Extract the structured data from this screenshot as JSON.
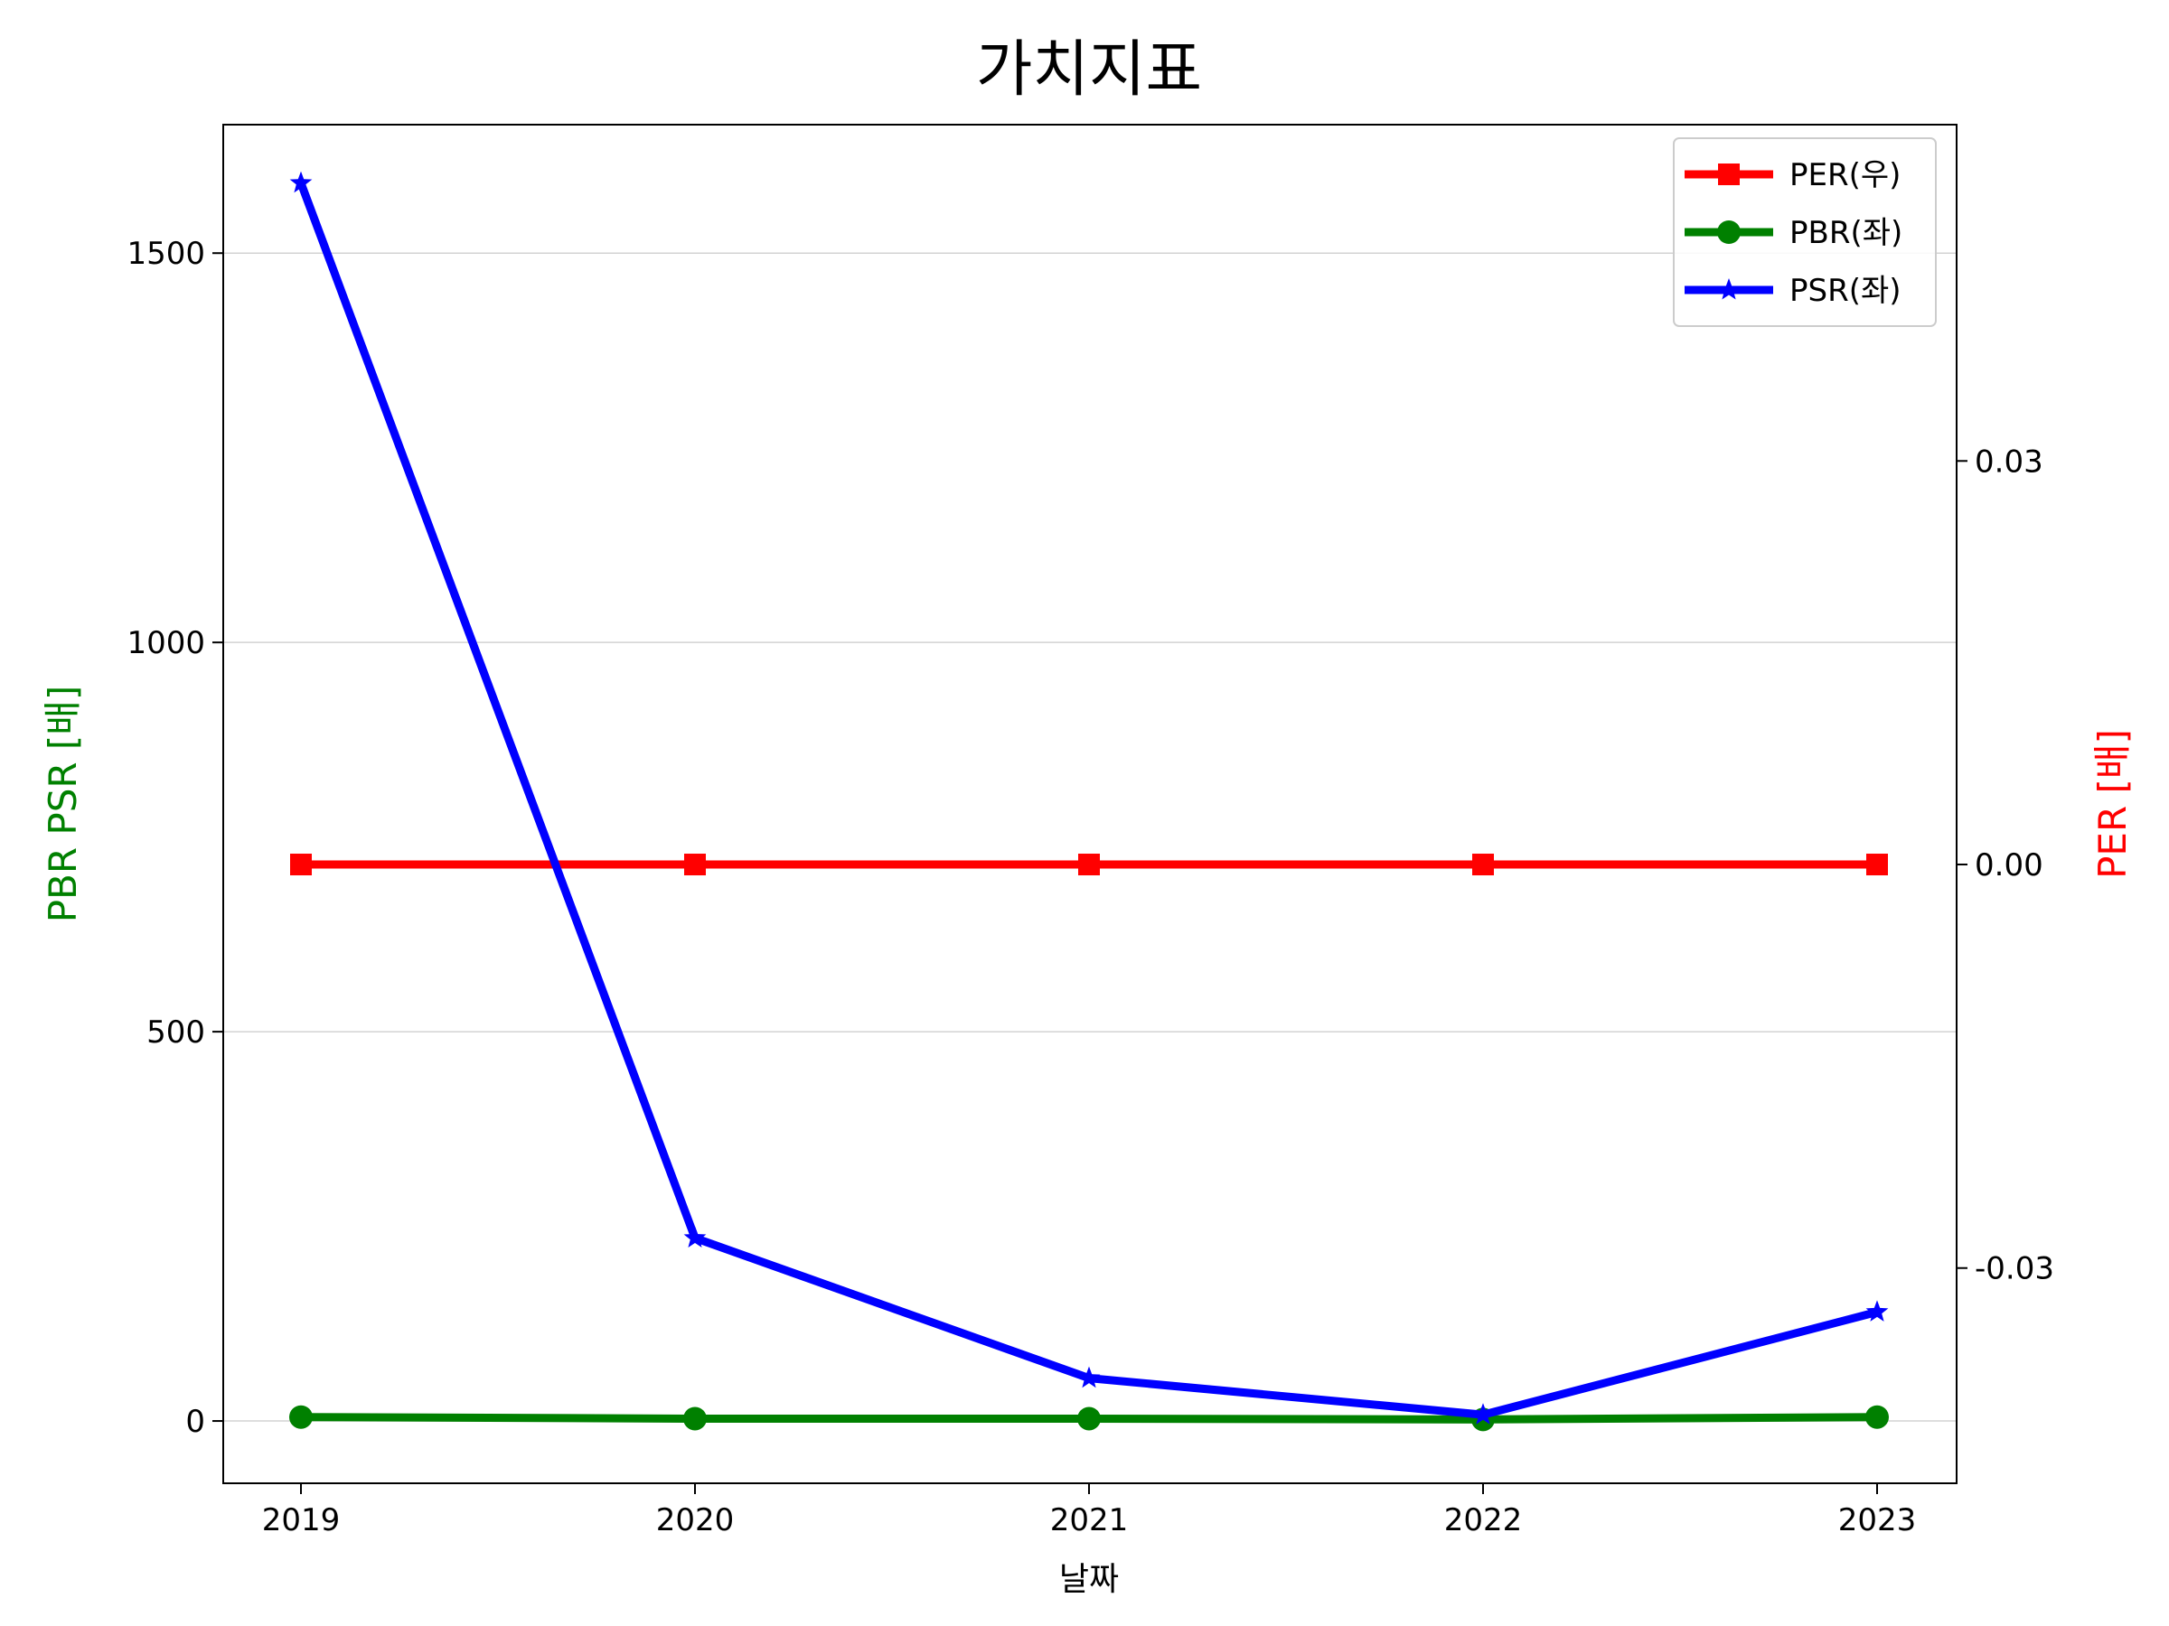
{
  "chart_data": {
    "type": "line",
    "title": "가치지표",
    "xlabel": "날짜",
    "ylabel_left": "PBR PSR [배]",
    "ylabel_right": "PER [배]",
    "x": [
      "2019",
      "2020",
      "2021",
      "2022",
      "2023"
    ],
    "left_axis": {
      "range": [
        -80,
        1665
      ],
      "ticks": [
        0,
        500,
        1000,
        1500
      ],
      "tick_labels": [
        "0",
        "500",
        "1000",
        "1500"
      ],
      "label_color": "#008000"
    },
    "right_axis": {
      "range": [
        -0.046,
        0.055
      ],
      "ticks": [
        -0.03,
        0.0,
        0.03
      ],
      "tick_labels": [
        "-0.03",
        "0.00",
        "0.03"
      ],
      "label_color": "#ff0000"
    },
    "grid": "horizontal",
    "legend_position": "top-right",
    "series": [
      {
        "name": "PER(우)",
        "axis": "right",
        "color": "#ff0000",
        "marker": "square",
        "values": [
          0,
          0,
          0,
          0,
          0
        ]
      },
      {
        "name": "PBR(좌)",
        "axis": "left",
        "color": "#008000",
        "marker": "circle",
        "values": [
          5,
          3,
          3,
          2,
          5
        ]
      },
      {
        "name": "PSR(좌)",
        "axis": "left",
        "color": "#0000ff",
        "marker": "star",
        "values": [
          1590,
          235,
          55,
          8,
          140
        ]
      }
    ]
  }
}
